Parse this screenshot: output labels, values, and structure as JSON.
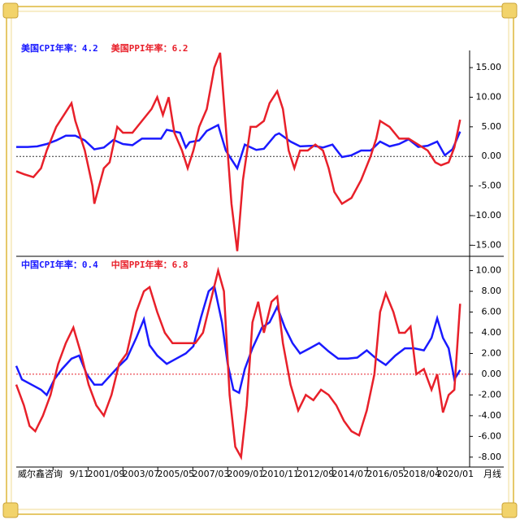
{
  "chart_data": [
    {
      "type": "line",
      "xlim": [
        1997.9,
        2021.7
      ],
      "ylim": [
        -16.6,
        17.9
      ],
      "yticks": [
        {
          "value": 15,
          "label": "15.00"
        },
        {
          "value": 10,
          "label": "10.00"
        },
        {
          "value": 5,
          "label": "5.00"
        },
        {
          "value": 0,
          "label": "0.00"
        },
        {
          "value": -5,
          "label": "-5.00"
        },
        {
          "value": -10,
          "label": "-10.00"
        },
        {
          "value": -15,
          "label": "-15.00"
        }
      ],
      "zero_line_color": "#333333",
      "series": [
        {
          "name": "美国CPI年率：4.2",
          "color": "#1a1aff",
          "x": [
            1997.9,
            1998.5,
            1999,
            1999.5,
            2000,
            2000.5,
            2001,
            2001.5,
            2002,
            2002.5,
            2003,
            2003.5,
            2004,
            2004.5,
            2005,
            2005.5,
            2005.8,
            2006.5,
            2006.8,
            2007,
            2007.5,
            2007.9,
            2008.5,
            2008.9,
            2009.2,
            2009.5,
            2009.9,
            2010.5,
            2010.9,
            2011.5,
            2011.7,
            2012.3,
            2012.8,
            2013.5,
            2014,
            2014.5,
            2015,
            2015.5,
            2016,
            2016.5,
            2017,
            2017.5,
            2018,
            2018.5,
            2019,
            2019.5,
            2020,
            2020.4,
            2020.8,
            2021.2
          ],
          "values": [
            1.6,
            1.6,
            1.7,
            2.1,
            2.7,
            3.5,
            3.5,
            2.7,
            1.2,
            1.5,
            2.8,
            2.1,
            1.9,
            3.0,
            3.0,
            3.0,
            4.5,
            4.0,
            1.5,
            2.4,
            2.7,
            4.3,
            5.3,
            1.0,
            -0.5,
            -2.0,
            2.0,
            1.1,
            1.3,
            3.6,
            3.9,
            2.5,
            1.7,
            1.8,
            1.5,
            2.0,
            -0.1,
            0.2,
            1.0,
            1.0,
            2.5,
            1.7,
            2.1,
            2.9,
            1.6,
            1.8,
            2.5,
            0.2,
            1.2,
            4.2
          ]
        },
        {
          "name": "美国PPI年率：6.2",
          "color": "#e8202a",
          "x": [
            1997.9,
            1998.3,
            1998.8,
            1999.2,
            1999.5,
            2000,
            2000.5,
            2000.8,
            2001,
            2001.5,
            2001.9,
            2002,
            2002.5,
            2002.8,
            2003.2,
            2003.5,
            2004,
            2004.5,
            2005,
            2005.3,
            2005.6,
            2005.9,
            2006.2,
            2006.6,
            2006.9,
            2007.2,
            2007.5,
            2007.9,
            2008.3,
            2008.6,
            2008.9,
            2009.2,
            2009.5,
            2009.8,
            2010.2,
            2010.5,
            2010.9,
            2011.2,
            2011.6,
            2011.9,
            2012.2,
            2012.5,
            2012.8,
            2013.2,
            2013.6,
            2014,
            2014.3,
            2014.6,
            2015,
            2015.5,
            2016,
            2016.5,
            2016.8,
            2017,
            2017.5,
            2018,
            2018.5,
            2019,
            2019.5,
            2019.9,
            2020.2,
            2020.6,
            2020.9,
            2021.2
          ],
          "values": [
            -2.5,
            -3,
            -3.5,
            -2,
            1,
            5,
            7.5,
            9,
            6,
            1,
            -5,
            -8,
            -2,
            -1,
            5,
            4,
            4,
            6,
            8,
            10,
            7,
            10,
            4,
            1,
            -2,
            1,
            5,
            8,
            15,
            17.5,
            5,
            -8,
            -16,
            -4,
            5,
            5,
            6,
            9,
            11,
            8,
            1,
            -2,
            1,
            1,
            2,
            1,
            -2,
            -6,
            -8,
            -7,
            -4,
            0,
            3,
            6,
            5,
            3,
            3,
            2,
            1,
            -1,
            -1.5,
            -1,
            1.5,
            6.2
          ]
        }
      ]
    },
    {
      "type": "line",
      "xlim": [
        1997.9,
        2021.7
      ],
      "ylim": [
        -8.8,
        11.3
      ],
      "yticks": [
        {
          "value": 10,
          "label": "10.00"
        },
        {
          "value": 8,
          "label": "8.00"
        },
        {
          "value": 6,
          "label": "6.00"
        },
        {
          "value": 4,
          "label": "4.00"
        },
        {
          "value": 2,
          "label": "2.00"
        },
        {
          "value": 0,
          "label": "0.00"
        },
        {
          "value": -2,
          "label": "-2.00"
        },
        {
          "value": -4,
          "label": "-4.00"
        },
        {
          "value": -6,
          "label": "-6.00"
        },
        {
          "value": -8,
          "label": "-8.00"
        }
      ],
      "zero_line_color": "#e8202a",
      "xticks": [
        {
          "value": 1999.83,
          "label": "9/11"
        },
        {
          "value": 2001.67,
          "label": "2001/09"
        },
        {
          "value": 2003.5,
          "label": "2003/07"
        },
        {
          "value": 2005.33,
          "label": "2005/05"
        },
        {
          "value": 2007.17,
          "label": "2007/03"
        },
        {
          "value": 2009.0,
          "label": "2009/01"
        },
        {
          "value": 2010.83,
          "label": "2010/11"
        },
        {
          "value": 2012.67,
          "label": "2012/09"
        },
        {
          "value": 2014.5,
          "label": "2014/07"
        },
        {
          "value": 2016.33,
          "label": "2016/05"
        },
        {
          "value": 2018.25,
          "label": "2018/04"
        },
        {
          "value": 2020.0,
          "label": "2020/01"
        }
      ],
      "source": "威尔鑫咨询",
      "period": "月线",
      "series": [
        {
          "name": "中国CPI年率：0.4",
          "color": "#1a1aff",
          "x": [
            1997.9,
            1998.2,
            1998.7,
            1999.2,
            1999.5,
            1999.9,
            2000.3,
            2000.8,
            2001.2,
            2001.6,
            2002,
            2002.4,
            2002.9,
            2003.3,
            2003.7,
            2004.2,
            2004.6,
            2004.9,
            2005.3,
            2005.8,
            2006.3,
            2006.8,
            2007.2,
            2007.6,
            2008.0,
            2008.3,
            2008.7,
            2009.0,
            2009.3,
            2009.6,
            2009.9,
            2010.3,
            2010.8,
            2011.2,
            2011.6,
            2012.0,
            2012.4,
            2012.8,
            2013.3,
            2013.8,
            2014.3,
            2014.8,
            2015.3,
            2015.8,
            2016.3,
            2016.8,
            2017.3,
            2017.8,
            2018.3,
            2018.8,
            2019.3,
            2019.7,
            2020.0,
            2020.3,
            2020.6,
            2020.9,
            2021.2
          ],
          "values": [
            0.8,
            -0.5,
            -1,
            -1.5,
            -2,
            -0.5,
            0.5,
            1.5,
            1.8,
            0,
            -1,
            -1,
            0,
            0.8,
            1.5,
            3.5,
            5.3,
            2.8,
            1.8,
            1.0,
            1.5,
            2.0,
            2.7,
            5.5,
            8.0,
            8.5,
            5,
            1,
            -1.5,
            -1.8,
            0.5,
            2.5,
            4.5,
            5.0,
            6.5,
            4.5,
            3.0,
            2.0,
            2.5,
            3.0,
            2.2,
            1.5,
            1.5,
            1.6,
            2.3,
            1.5,
            0.9,
            1.8,
            2.5,
            2.5,
            2.3,
            3.5,
            5.4,
            3.5,
            2.5,
            -0.5,
            0.4
          ]
        },
        {
          "name": "中国PPI年率：6.8",
          "color": "#e8202a",
          "x": [
            1997.9,
            1998.3,
            1998.6,
            1998.9,
            1999.3,
            1999.7,
            2000.1,
            2000.5,
            2000.9,
            2001.3,
            2001.7,
            2002.1,
            2002.5,
            2002.9,
            2003.3,
            2003.7,
            2004.2,
            2004.6,
            2004.9,
            2005.3,
            2005.7,
            2006.1,
            2006.6,
            2006.9,
            2007.3,
            2007.7,
            2008.1,
            2008.5,
            2008.8,
            2009.1,
            2009.4,
            2009.7,
            2010.0,
            2010.3,
            2010.6,
            2010.9,
            2011.3,
            2011.6,
            2011.9,
            2012.3,
            2012.7,
            2013.1,
            2013.5,
            2013.9,
            2014.3,
            2014.7,
            2015.1,
            2015.5,
            2015.9,
            2016.3,
            2016.7,
            2017.0,
            2017.3,
            2017.7,
            2018.0,
            2018.3,
            2018.6,
            2018.9,
            2019.3,
            2019.7,
            2020.0,
            2020.3,
            2020.6,
            2020.9,
            2021.2
          ],
          "values": [
            -1,
            -3,
            -5,
            -5.5,
            -4,
            -2,
            1,
            3,
            4.5,
            2,
            -1,
            -3,
            -4,
            -2,
            1,
            2,
            6,
            8,
            8.4,
            6,
            4,
            3,
            3,
            3,
            3,
            4,
            7,
            10,
            8,
            -2,
            -7,
            -8,
            -3,
            5,
            7,
            4,
            7,
            7.5,
            3,
            -1,
            -3.5,
            -2,
            -2.5,
            -1.5,
            -2,
            -3,
            -4.5,
            -5.5,
            -5.9,
            -3.5,
            0,
            6,
            7.8,
            6,
            4,
            4,
            4.6,
            0,
            0.5,
            -1.5,
            0,
            -3.7,
            -2,
            -1.5,
            6.8
          ]
        }
      ]
    }
  ]
}
